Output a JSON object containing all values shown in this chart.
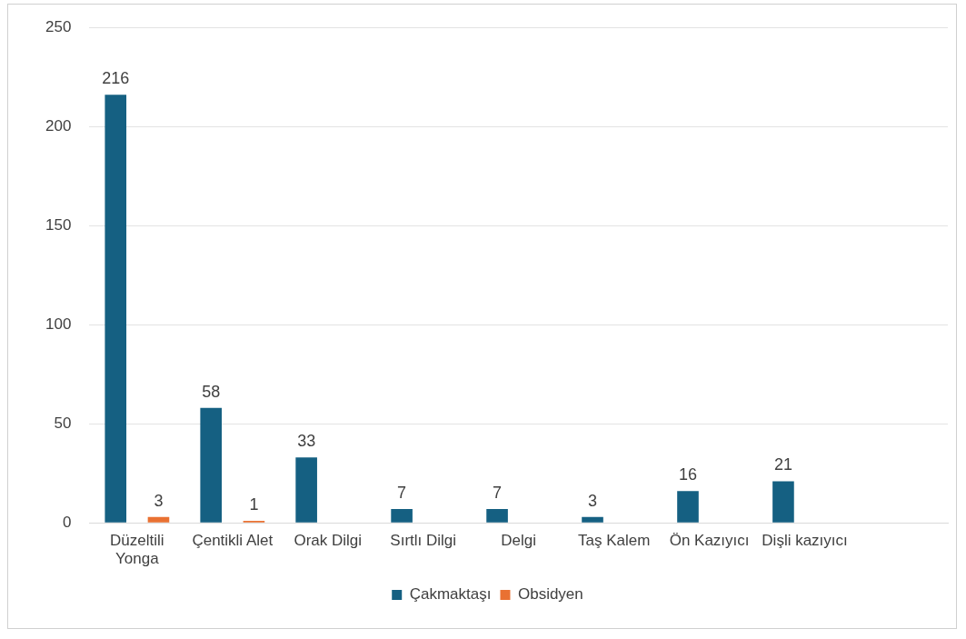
{
  "chart_data": {
    "type": "bar",
    "categories": [
      "Düzeltili Yonga",
      "Çentikli Alet",
      "Orak Dilgi",
      "Sırtlı Dilgi",
      "Delgi",
      "Taş Kalem",
      "Ön Kazıyıcı",
      "Dişli kazıyıcı",
      null
    ],
    "series": [
      {
        "name": "Çakmaktaşı",
        "color": "#156082",
        "values": [
          216,
          58,
          33,
          7,
          7,
          3,
          16,
          21,
          null
        ]
      },
      {
        "name": "Obsidyen",
        "color": "#e97132",
        "values": [
          3,
          1,
          null,
          null,
          null,
          null,
          null,
          null,
          null
        ]
      }
    ],
    "ylim": [
      0,
      250
    ],
    "yticks": [
      0,
      50,
      100,
      150,
      200,
      250
    ],
    "grid": "y",
    "legend": "bottom",
    "data_labels": true
  }
}
